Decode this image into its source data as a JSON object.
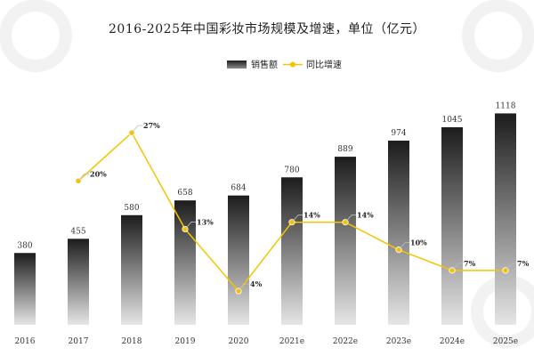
{
  "chart_data": {
    "type": "bar",
    "title": "2016-2025年中国彩妆市场规模及增速，单位（亿元）",
    "categories": [
      "2016",
      "2017",
      "2018",
      "2019",
      "2020",
      "2021e",
      "2022e",
      "2023e",
      "2024e",
      "2025e"
    ],
    "series": [
      {
        "name": "销售额",
        "type": "bar",
        "values": [
          380,
          455,
          580,
          658,
          684,
          780,
          889,
          974,
          1045,
          1118
        ]
      },
      {
        "name": "同比增速",
        "type": "line",
        "values": [
          null,
          20,
          27,
          13,
          4,
          14,
          14,
          10,
          7,
          7
        ],
        "unit": "%"
      }
    ],
    "bar_labels": [
      "380",
      "455",
      "580",
      "658",
      "684",
      "780",
      "889",
      "974",
      "1045",
      "1118"
    ],
    "line_labels": [
      "",
      "20%",
      "27%",
      "13%",
      "4%",
      "14%",
      "14%",
      "10%",
      "7%",
      "7%"
    ],
    "ylim_bar": [
      0,
      1200
    ],
    "ylim_line": [
      0,
      34
    ],
    "legend": {
      "placement": "top-center",
      "entries": [
        "销售额",
        "同比增速"
      ]
    },
    "grid": false,
    "colors": {
      "bar_top": "#1c1c1c",
      "bar_bottom": "#e6e6e6",
      "line": "#f5c400",
      "marker": "#f5c400",
      "label_leader": "#bdbdbd"
    }
  }
}
